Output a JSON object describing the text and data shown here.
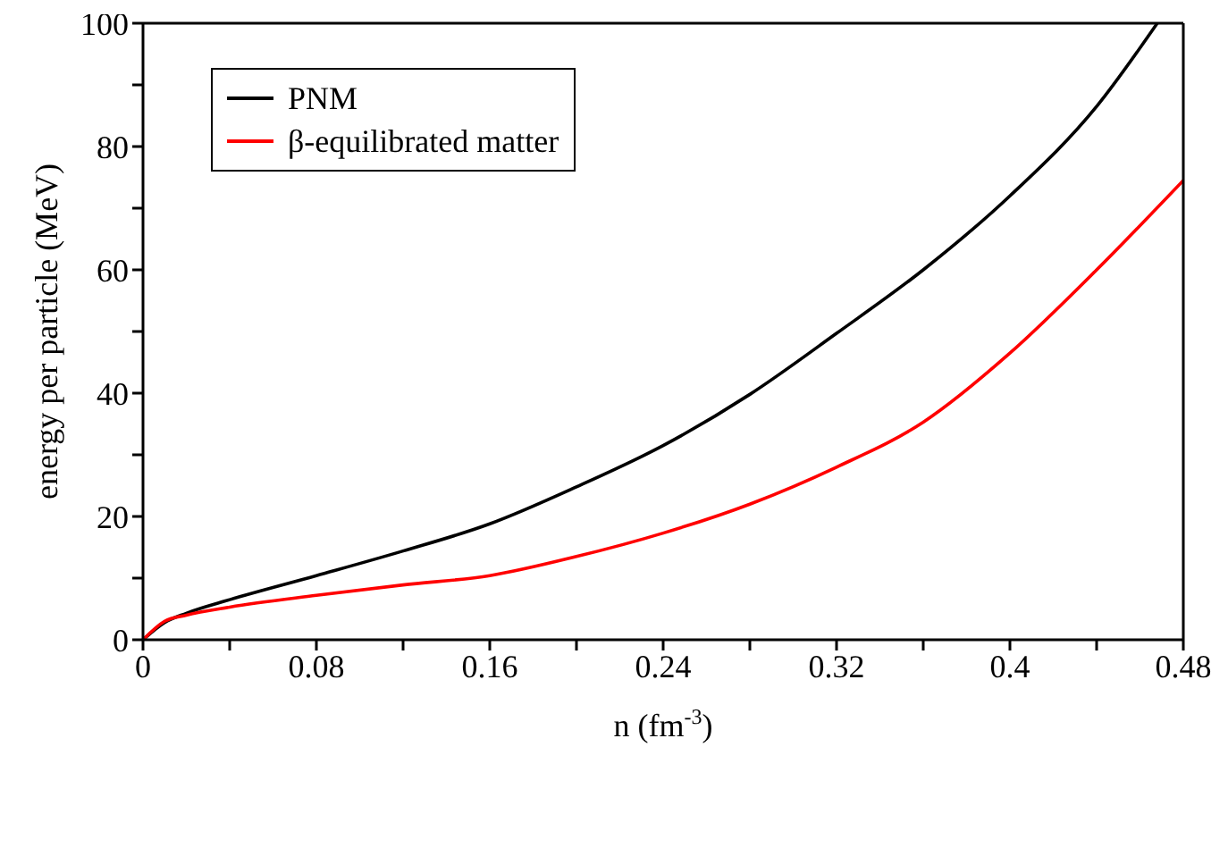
{
  "chart_data": {
    "type": "line",
    "xlabel": "n (fm$^{-3}$)",
    "ylabel": "energy per particle (MeV)",
    "xlim": [
      0,
      0.48
    ],
    "xticks": [
      0,
      {
        "value": 0.04,
        "label": null
      },
      0.08,
      {
        "value": 0.12,
        "label": null
      },
      0.16,
      {
        "value": 0.2,
        "label": null
      },
      0.24,
      {
        "value": 0.28,
        "label": null
      },
      0.32,
      {
        "value": 0.36,
        "label": null
      },
      0.4,
      {
        "value": 0.44,
        "label": null
      },
      0.48
    ],
    "ylim": [
      0,
      100
    ],
    "yticks": [
      0,
      {
        "value": 10,
        "label": null
      },
      20,
      {
        "value": 30,
        "label": null
      },
      40,
      {
        "value": 50,
        "label": null
      },
      60,
      {
        "value": 70,
        "label": null
      },
      80,
      {
        "value": 90,
        "label": null
      },
      100
    ],
    "grid": false,
    "legend": "top left",
    "marker": "none",
    "line_style": "solid",
    "series": [
      {
        "name": "PNM",
        "color": "#000000",
        "x": [
          0,
          0.01,
          0.02,
          0.04,
          0.08,
          0.12,
          0.16,
          0.2,
          0.24,
          0.28,
          0.32,
          0.36,
          0.4,
          0.44,
          0.468
        ],
        "values": [
          0,
          2.8,
          4.3,
          6.5,
          10.4,
          14.4,
          18.8,
          24.8,
          31.5,
          39.8,
          49.7,
          60,
          72,
          86.5,
          100
        ]
      },
      {
        "name": "β-equilibrated matter",
        "color": "#ff0000",
        "x": [
          0,
          0.01,
          0.02,
          0.04,
          0.08,
          0.12,
          0.16,
          0.2,
          0.24,
          0.28,
          0.32,
          0.36,
          0.4,
          0.44,
          0.48
        ],
        "values": [
          0,
          3,
          4,
          5.3,
          7.2,
          8.9,
          10.4,
          13.5,
          17.3,
          22,
          28,
          35.3,
          46.5,
          60,
          74.5
        ]
      }
    ]
  }
}
